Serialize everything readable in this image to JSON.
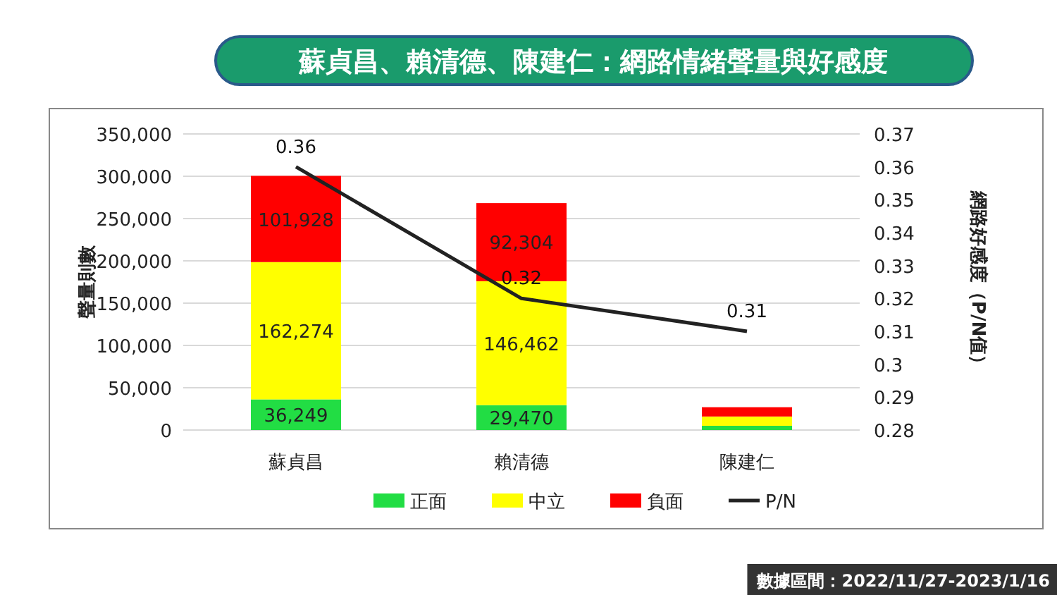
{
  "chart_data": {
    "type": "bar",
    "title": "蘇貞昌、賴清德、陳建仁：網路情緒聲量與好感度",
    "ylabel": "聲量則數",
    "y2label": "網路好感度（P/N值）",
    "annotations": [
      "數據區間：2022/11/27-2023/1/16"
    ],
    "categories": [
      "蘇貞昌",
      "賴清德",
      "陳建仁"
    ],
    "stacked": true,
    "series": [
      {
        "name": "正面",
        "color": "#22dd44",
        "values": [
          36249,
          29470,
          5000
        ],
        "value_labels": [
          "36,249",
          "29,470",
          null
        ]
      },
      {
        "name": "中立",
        "color": "#ffff00",
        "values": [
          162274,
          146462,
          11000
        ],
        "value_labels": [
          "162,274",
          "146,462",
          null
        ]
      },
      {
        "name": "負面",
        "color": "#ff0000",
        "values": [
          101928,
          92304,
          11000
        ],
        "value_labels": [
          "101,928",
          "92,304",
          null
        ]
      },
      {
        "name": "P/N",
        "type": "line",
        "axis": "y2",
        "color": "#222222",
        "values": [
          0.36,
          0.32,
          0.31
        ],
        "value_labels": [
          "0.36",
          "0.32",
          "0.31"
        ]
      }
    ],
    "ylim": [
      0,
      350000
    ],
    "yticks": [
      {
        "value": 0,
        "label": "0"
      },
      {
        "value": 50000,
        "label": "50,000"
      },
      {
        "value": 100000,
        "label": "100,000"
      },
      {
        "value": 150000,
        "label": "150,000"
      },
      {
        "value": 200000,
        "label": "200,000"
      },
      {
        "value": 250000,
        "label": "250,000"
      },
      {
        "value": 300000,
        "label": "300,000"
      },
      {
        "value": 350000,
        "label": "350,000"
      }
    ],
    "y2lim": [
      0.28,
      0.37
    ],
    "y2ticks": [
      0.28,
      0.29,
      0.3,
      0.31,
      0.32,
      0.33,
      0.34,
      0.35,
      0.36,
      0.37
    ],
    "grid": "y",
    "legend": "bottom",
    "marker": "none",
    "line_style": "solid"
  }
}
